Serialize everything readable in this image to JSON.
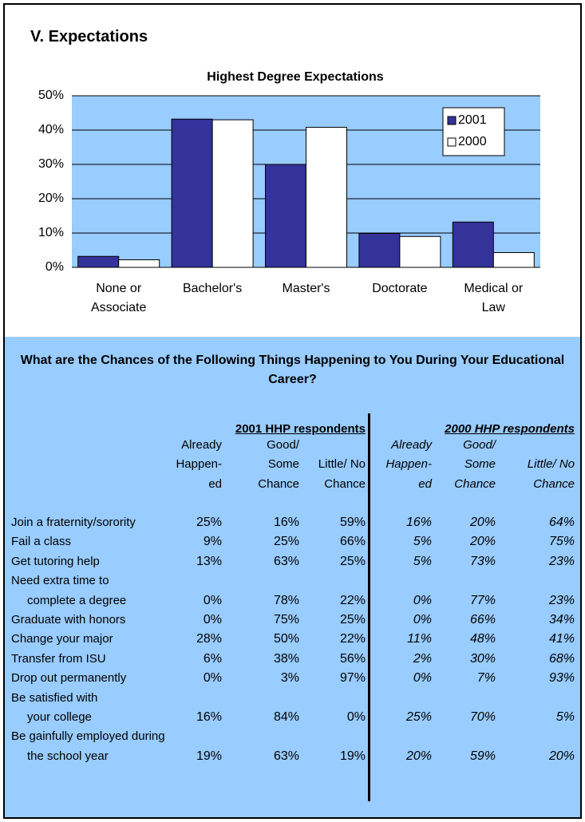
{
  "header": {
    "title": "V. Expectations"
  },
  "chart_data": {
    "type": "bar",
    "title": "Highest Degree Expectations",
    "categories": [
      "None or Associate",
      "Bachelor's",
      "Master's",
      "Doctorate",
      "Medical or Law"
    ],
    "series": [
      {
        "name": "2001",
        "color": "#333399",
        "values": [
          3.2,
          43.2,
          30,
          9.9,
          13.2
        ]
      },
      {
        "name": "2000",
        "color": "#ffffff",
        "values": [
          2.2,
          43,
          40.8,
          9,
          4.3
        ]
      }
    ],
    "ylim": [
      0,
      50
    ],
    "yticks": [
      {
        "value": 0,
        "label": "0%"
      },
      {
        "value": 10,
        "label": "10%"
      },
      {
        "value": 20,
        "label": "20%"
      },
      {
        "value": 30,
        "label": "30%"
      },
      {
        "value": 40,
        "label": "40%"
      },
      {
        "value": 50,
        "label": "50%"
      }
    ],
    "grid": true,
    "legend": "upper right",
    "plot_color": "#99ccff"
  },
  "table": {
    "title": "What are the Chances of the Following Things Happening to You During Your Educational Career?",
    "groups": [
      "2001 HHP respondents",
      "2000 HHP respondents"
    ],
    "columns": [
      [
        "Already",
        "Happen-",
        "ed"
      ],
      [
        "Good/",
        "Some",
        "Chance"
      ],
      [
        "Little/ No",
        "Chance"
      ],
      [
        "Already",
        "Happen-",
        "ed"
      ],
      [
        "Good/",
        "Some",
        "Chance"
      ],
      [
        "Little/ No",
        "Chance"
      ]
    ],
    "rows": [
      {
        "label": [
          "Join a fraternity/sorority"
        ],
        "values": [
          "25%",
          "16%",
          "59%",
          "16%",
          "20%",
          "64%"
        ]
      },
      {
        "label": [
          "Fail a class"
        ],
        "values": [
          "9%",
          "25%",
          "66%",
          "5%",
          "20%",
          "75%"
        ]
      },
      {
        "label": [
          "Get tutoring help"
        ],
        "values": [
          "13%",
          "63%",
          "25%",
          "5%",
          "73%",
          "23%"
        ]
      },
      {
        "label": [
          "Need extra time to",
          "complete a degree"
        ],
        "values": [
          "0%",
          "78%",
          "22%",
          "0%",
          "77%",
          "23%"
        ]
      },
      {
        "label": [
          "Graduate with honors"
        ],
        "values": [
          "0%",
          "75%",
          "25%",
          "0%",
          "66%",
          "34%"
        ]
      },
      {
        "label": [
          "Change your major"
        ],
        "values": [
          "28%",
          "50%",
          "22%",
          "11%",
          "48%",
          "41%"
        ]
      },
      {
        "label": [
          "Transfer from ISU"
        ],
        "values": [
          "6%",
          "38%",
          "56%",
          "2%",
          "30%",
          "68%"
        ]
      },
      {
        "label": [
          "Drop out permanently"
        ],
        "values": [
          "0%",
          "3%",
          "97%",
          "0%",
          "7%",
          "93%"
        ]
      },
      {
        "label": [
          "Be satisfied with",
          "your college"
        ],
        "values": [
          "16%",
          "84%",
          "0%",
          "25%",
          "70%",
          "5%"
        ]
      },
      {
        "label": [
          "Be gainfully employed during",
          "the school year"
        ],
        "values": [
          "19%",
          "63%",
          "19%",
          "20%",
          "59%",
          "20%"
        ]
      }
    ]
  }
}
